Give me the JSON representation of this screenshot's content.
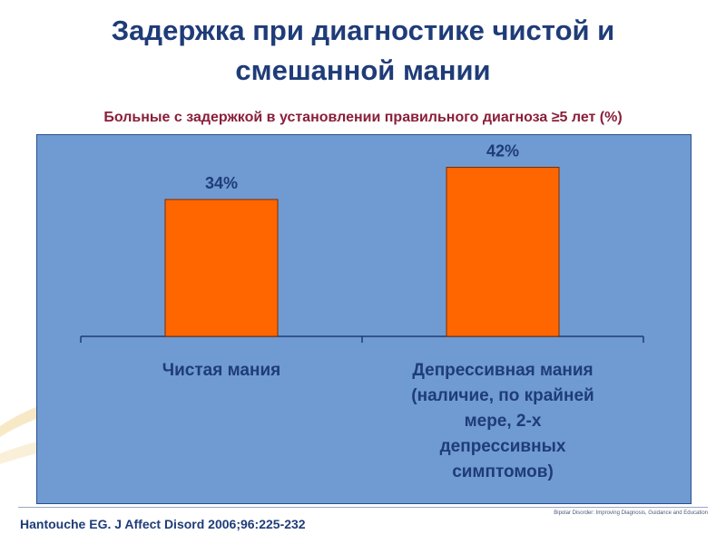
{
  "slide": {
    "title": "Задержка при диагностике чистой и смешанной мании",
    "citation": "Hantouche EG. J Affect Disord 2006;96:225-232",
    "branding": "Bipolar Disorder: Improving Diagnosis, Guidance and Education"
  },
  "colors": {
    "title": "#1f3c78",
    "subtitle": "#8a1f3a",
    "panel": "#6f9bd2",
    "bar": "#ff6600",
    "bar_border": "#7a2c00",
    "text": "#1f3c78"
  },
  "chart_data": {
    "type": "bar",
    "title": "Больные с задержкой в установлении правильного диагноза ≥5 лет (%)",
    "categories": [
      "Чистая мания",
      "Депрессивная мания (наличие, по крайней мере, 2-х депрессивных симптомов)"
    ],
    "category_lines": [
      [
        "Чистая мания"
      ],
      [
        "Депрессивная мания",
        "(наличие, по крайней",
        "мере, 2-х",
        "депрессивных",
        "симптомов)"
      ]
    ],
    "values": [
      34,
      42
    ],
    "value_labels": [
      "34%",
      "42%"
    ],
    "ylim": [
      0,
      50
    ],
    "grid": false,
    "legend": "none"
  }
}
